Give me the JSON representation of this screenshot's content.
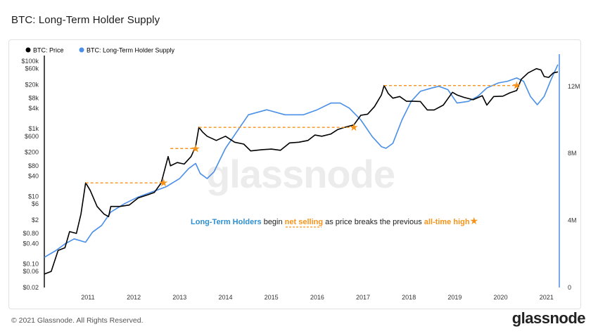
{
  "title": "BTC: Long-Term Holder Supply",
  "footer": {
    "copyright": "© 2021 Glassnode. All Rights Reserved.",
    "brand": "glassnode"
  },
  "watermark": "glassnode",
  "colors": {
    "price": "#000000",
    "supply": "#4a8fe8",
    "annotation": "#f7931a",
    "accent_blue": "#2f8fcf"
  },
  "annotation": {
    "part1": "Long-Term Holders",
    "part2": " begin ",
    "part3": "net selling",
    "part4": " as price breaks the previous ",
    "part5": "all-time high",
    "star": "★"
  },
  "chart_data": {
    "type": "line",
    "legend": {
      "placement": "top-left",
      "entries": [
        "BTC: Price",
        "BTC: Long-Term Holder Supply"
      ]
    },
    "x_ticks": [
      "2011",
      "2012",
      "2013",
      "2014",
      "2015",
      "2016",
      "2017",
      "2018",
      "2019",
      "2020",
      "2021"
    ],
    "y_left": {
      "scale": "log",
      "ticks": [
        {
          "v": 100000,
          "label": "$100k"
        },
        {
          "v": 60000,
          "label": "$60k"
        },
        {
          "v": 20000,
          "label": "$20k"
        },
        {
          "v": 8000,
          "label": "$8k"
        },
        {
          "v": 4000,
          "label": "$4k"
        },
        {
          "v": 1000,
          "label": "$1k"
        },
        {
          "v": 600,
          "label": "$600"
        },
        {
          "v": 200,
          "label": "$200"
        },
        {
          "v": 80,
          "label": "$80"
        },
        {
          "v": 40,
          "label": "$40"
        },
        {
          "v": 10,
          "label": "$10"
        },
        {
          "v": 6,
          "label": "$6"
        },
        {
          "v": 2,
          "label": "$2"
        },
        {
          "v": 0.8,
          "label": "$0.80"
        },
        {
          "v": 0.4,
          "label": "$0.40"
        },
        {
          "v": 0.1,
          "label": "$0.10"
        },
        {
          "v": 0.06,
          "label": "$0.06"
        },
        {
          "v": 0.02,
          "label": "$0.02"
        }
      ],
      "range": [
        0.02,
        100000
      ]
    },
    "y_right": {
      "scale": "linear",
      "ticks": [
        {
          "v": 12000000,
          "label": "12M"
        },
        {
          "v": 8000000,
          "label": "8M"
        },
        {
          "v": 4000000,
          "label": "4M"
        },
        {
          "v": 0,
          "label": "0"
        }
      ],
      "range": [
        0,
        13500000
      ]
    },
    "series": [
      {
        "name": "BTC: Price",
        "axis": "left",
        "points": [
          [
            2010.55,
            0.05
          ],
          [
            2010.7,
            0.06
          ],
          [
            2010.85,
            0.25
          ],
          [
            2011.0,
            0.3
          ],
          [
            2011.1,
            0.9
          ],
          [
            2011.25,
            0.8
          ],
          [
            2011.35,
            3
          ],
          [
            2011.45,
            25
          ],
          [
            2011.55,
            15
          ],
          [
            2011.7,
            5
          ],
          [
            2011.85,
            3
          ],
          [
            2011.95,
            2.5
          ],
          [
            2012.0,
            5
          ],
          [
            2012.2,
            5
          ],
          [
            2012.4,
            5.5
          ],
          [
            2012.6,
            9
          ],
          [
            2012.8,
            11
          ],
          [
            2012.95,
            13
          ],
          [
            2013.1,
            25
          ],
          [
            2013.25,
            150
          ],
          [
            2013.3,
            80
          ],
          [
            2013.45,
            100
          ],
          [
            2013.6,
            90
          ],
          [
            2013.75,
            150
          ],
          [
            2013.85,
            300
          ],
          [
            2013.92,
            1100
          ],
          [
            2014.0,
            800
          ],
          [
            2014.1,
            600
          ],
          [
            2014.3,
            450
          ],
          [
            2014.5,
            600
          ],
          [
            2014.7,
            400
          ],
          [
            2014.9,
            350
          ],
          [
            2015.05,
            220
          ],
          [
            2015.3,
            240
          ],
          [
            2015.5,
            250
          ],
          [
            2015.7,
            230
          ],
          [
            2015.9,
            380
          ],
          [
            2016.1,
            400
          ],
          [
            2016.3,
            450
          ],
          [
            2016.45,
            650
          ],
          [
            2016.6,
            600
          ],
          [
            2016.8,
            700
          ],
          [
            2016.95,
            950
          ],
          [
            2017.1,
            1100
          ],
          [
            2017.3,
            1300
          ],
          [
            2017.45,
            2500
          ],
          [
            2017.6,
            2700
          ],
          [
            2017.75,
            4500
          ],
          [
            2017.9,
            10000
          ],
          [
            2017.96,
            19000
          ],
          [
            2018.05,
            11000
          ],
          [
            2018.15,
            8000
          ],
          [
            2018.3,
            9000
          ],
          [
            2018.45,
            6500
          ],
          [
            2018.6,
            6500
          ],
          [
            2018.75,
            6400
          ],
          [
            2018.9,
            3600
          ],
          [
            2019.05,
            3600
          ],
          [
            2019.25,
            5000
          ],
          [
            2019.45,
            12000
          ],
          [
            2019.55,
            10000
          ],
          [
            2019.7,
            8500
          ],
          [
            2019.9,
            7200
          ],
          [
            2020.1,
            9500
          ],
          [
            2020.2,
            5000
          ],
          [
            2020.35,
            9000
          ],
          [
            2020.55,
            9200
          ],
          [
            2020.7,
            11500
          ],
          [
            2020.85,
            13500
          ],
          [
            2020.95,
            29000
          ],
          [
            2021.1,
            45000
          ],
          [
            2021.28,
            60000
          ],
          [
            2021.38,
            55000
          ],
          [
            2021.45,
            35000
          ],
          [
            2021.55,
            33000
          ],
          [
            2021.65,
            45000
          ],
          [
            2021.75,
            48000
          ]
        ]
      },
      {
        "name": "BTC: Long-Term Holder Supply",
        "axis": "right",
        "points": [
          [
            2010.55,
            1800000
          ],
          [
            2010.8,
            2200000
          ],
          [
            2011.0,
            2600000
          ],
          [
            2011.2,
            2900000
          ],
          [
            2011.45,
            2700000
          ],
          [
            2011.6,
            3300000
          ],
          [
            2011.8,
            3700000
          ],
          [
            2012.0,
            4500000
          ],
          [
            2012.3,
            5000000
          ],
          [
            2012.6,
            5400000
          ],
          [
            2012.9,
            5700000
          ],
          [
            2013.2,
            6000000
          ],
          [
            2013.5,
            6500000
          ],
          [
            2013.7,
            7100000
          ],
          [
            2013.85,
            7400000
          ],
          [
            2013.95,
            6800000
          ],
          [
            2014.1,
            6500000
          ],
          [
            2014.25,
            6900000
          ],
          [
            2014.5,
            8300000
          ],
          [
            2014.8,
            9500000
          ],
          [
            2015.0,
            10300000
          ],
          [
            2015.4,
            10600000
          ],
          [
            2015.8,
            10300000
          ],
          [
            2016.2,
            10300000
          ],
          [
            2016.5,
            10600000
          ],
          [
            2016.8,
            11000000
          ],
          [
            2017.0,
            11000000
          ],
          [
            2017.2,
            10700000
          ],
          [
            2017.45,
            10000000
          ],
          [
            2017.7,
            9000000
          ],
          [
            2017.9,
            8400000
          ],
          [
            2018.0,
            8300000
          ],
          [
            2018.15,
            8600000
          ],
          [
            2018.35,
            10000000
          ],
          [
            2018.55,
            11100000
          ],
          [
            2018.75,
            11700000
          ],
          [
            2019.0,
            11900000
          ],
          [
            2019.15,
            12000000
          ],
          [
            2019.35,
            11800000
          ],
          [
            2019.55,
            11000000
          ],
          [
            2019.8,
            11100000
          ],
          [
            2020.0,
            11400000
          ],
          [
            2020.2,
            11900000
          ],
          [
            2020.45,
            12200000
          ],
          [
            2020.65,
            12300000
          ],
          [
            2020.85,
            12500000
          ],
          [
            2021.0,
            12300000
          ],
          [
            2021.15,
            11400000
          ],
          [
            2021.3,
            10900000
          ],
          [
            2021.45,
            11400000
          ],
          [
            2021.6,
            12400000
          ],
          [
            2021.75,
            13300000
          ]
        ]
      }
    ],
    "ath_breakout_markers": [
      {
        "from_x": 2011.45,
        "to_x": 2013.15,
        "price": 25
      },
      {
        "from_x": 2013.3,
        "to_x": 2013.85,
        "price": 260
      },
      {
        "from_x": 2013.92,
        "to_x": 2017.3,
        "price": 1100
      },
      {
        "from_x": 2017.96,
        "to_x": 2020.85,
        "price": 19000
      }
    ]
  }
}
